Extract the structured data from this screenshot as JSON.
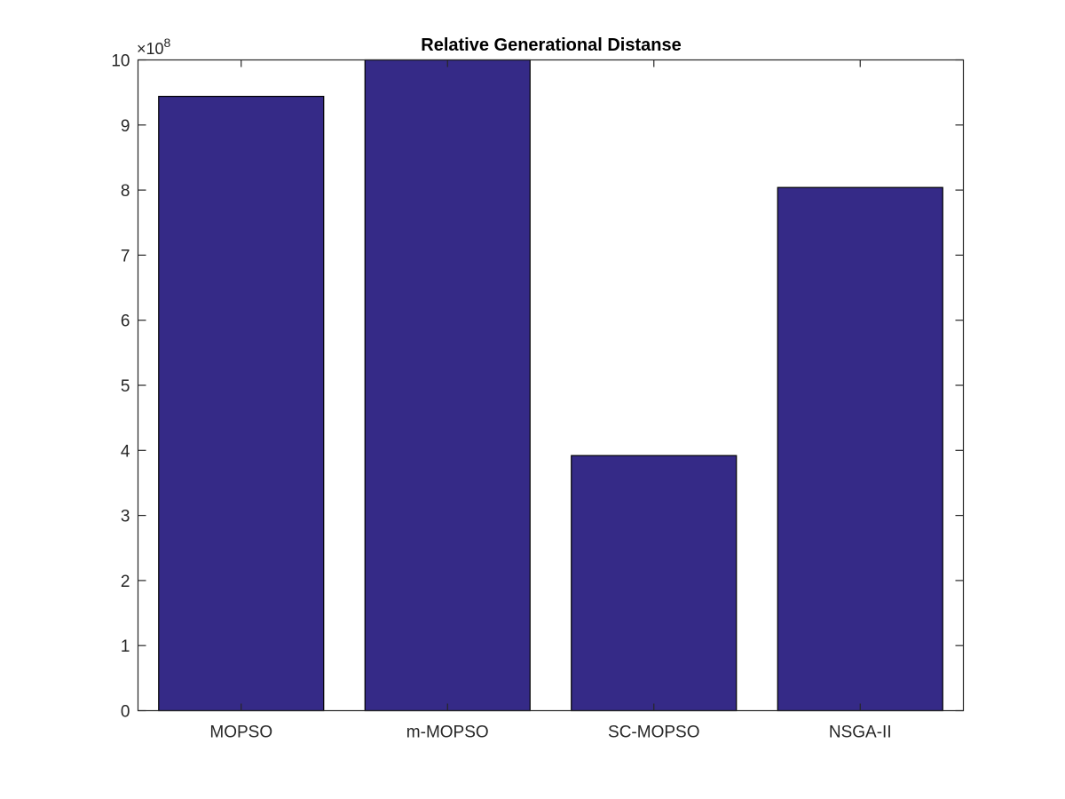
{
  "chart_data": {
    "type": "bar",
    "title": "Relative Generational Distanse",
    "xlabel": "",
    "ylabel": "",
    "categories": [
      "MOPSO",
      "m-MOPSO",
      "SC-MOPSO",
      "NSGA-II"
    ],
    "values": [
      944000000,
      1000000000,
      392000000,
      804000000
    ],
    "ylim": [
      0,
      1000000000
    ],
    "y_ticks": [
      0,
      1,
      2,
      3,
      4,
      5,
      6,
      7,
      8,
      9,
      10
    ],
    "y_multiplier": {
      "prefix": "×10",
      "exponent": "8"
    },
    "bar_color": "#352a87",
    "grid": false,
    "legend": "none"
  }
}
